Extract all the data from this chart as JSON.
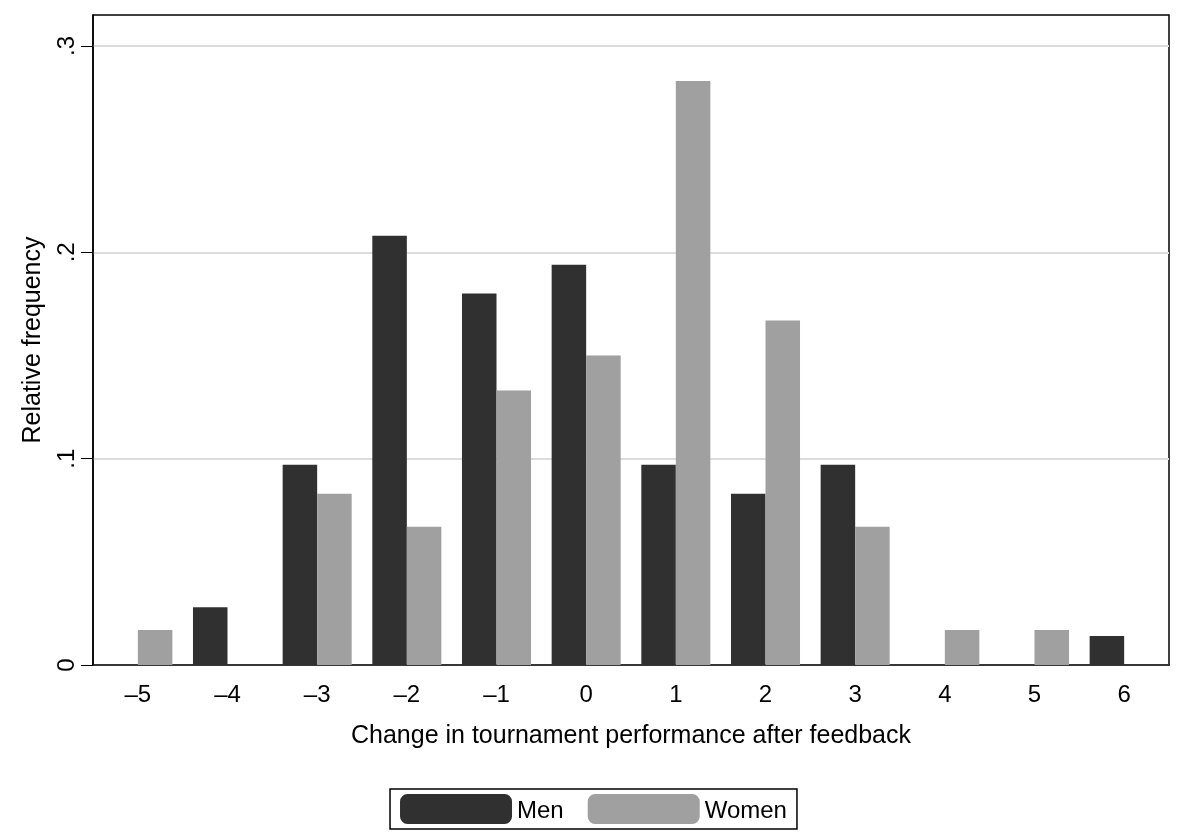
{
  "chart_data": {
    "type": "bar",
    "xlabel": "Change in tournament performance after feedback",
    "ylabel": "Relative frequency",
    "categories": [
      "–5",
      "–4",
      "–3",
      "–2",
      "–1",
      "0",
      "1",
      "2",
      "3",
      "4",
      "5",
      "6"
    ],
    "series": [
      {
        "name": "Men",
        "color": "#303030",
        "values": [
          0,
          0.028,
          0.097,
          0.208,
          0.18,
          0.194,
          0.097,
          0.083,
          0.097,
          0,
          0,
          0.014
        ]
      },
      {
        "name": "Women",
        "color": "#a0a0a0",
        "values": [
          0.017,
          0,
          0.083,
          0.067,
          0.133,
          0.15,
          0.283,
          0.167,
          0.067,
          0.017,
          0.017,
          0
        ]
      }
    ],
    "ylim": [
      0,
      0.315
    ],
    "yticks": [
      {
        "value": 0,
        "label": "0"
      },
      {
        "value": 0.1,
        "label": ".1"
      },
      {
        "value": 0.2,
        "label": ".2"
      },
      {
        "value": 0.3,
        "label": ".3"
      }
    ],
    "grid": "y",
    "legend": "bottom"
  }
}
